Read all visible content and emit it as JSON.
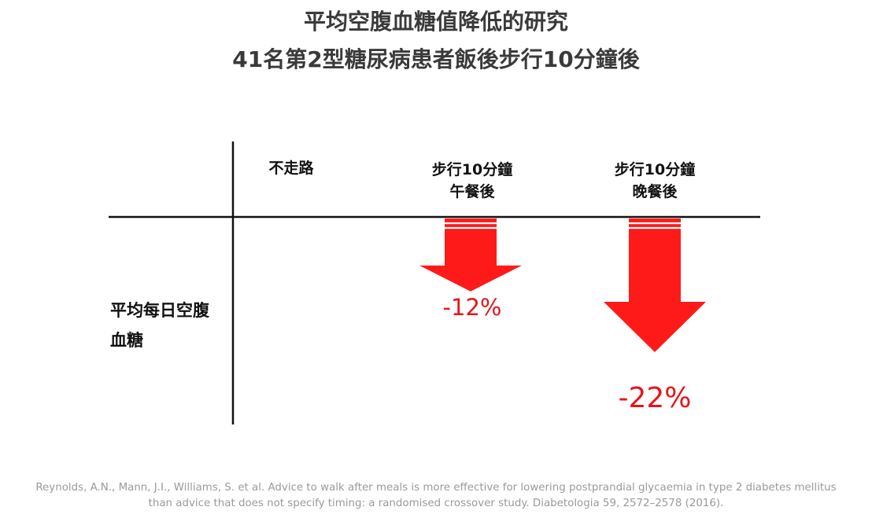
{
  "title": {
    "line1": "平均空腹血糖值降低的研究",
    "line2": "41名第2型糖尿病患者飯後步行10分鐘後"
  },
  "columns": [
    {
      "line1": "不走路",
      "line2": ""
    },
    {
      "line1": "步行10分鐘",
      "line2": "午餐後"
    },
    {
      "line1": "步行10分鐘",
      "line2": "晚餐後"
    }
  ],
  "row_label": {
    "line1": "平均每日空腹",
    "line2": "血糖"
  },
  "chart_data": {
    "type": "bar",
    "categories": [
      "不走路",
      "步行10分鐘 午餐後",
      "步行10分鐘 晚餐後"
    ],
    "values": [
      null,
      -12,
      -22
    ],
    "value_labels": [
      "",
      "-12%",
      "-22%"
    ],
    "unit": "%",
    "ylabel": "平均每日空腹血糖",
    "ylim": [
      -30,
      0
    ],
    "bar_color": "#ff1a1a",
    "label_color": "#e8141b"
  },
  "citation": {
    "line1": "Reynolds, A.N., Mann, J.I., Williams, S. et al. Advice to walk after meals is more effective for lowering postprandial glycaemia in type 2 diabetes mellitus",
    "line2": "than advice that does not specify timing: a randomised crossover study. Diabetologia 59, 2572–2578 (2016)."
  }
}
